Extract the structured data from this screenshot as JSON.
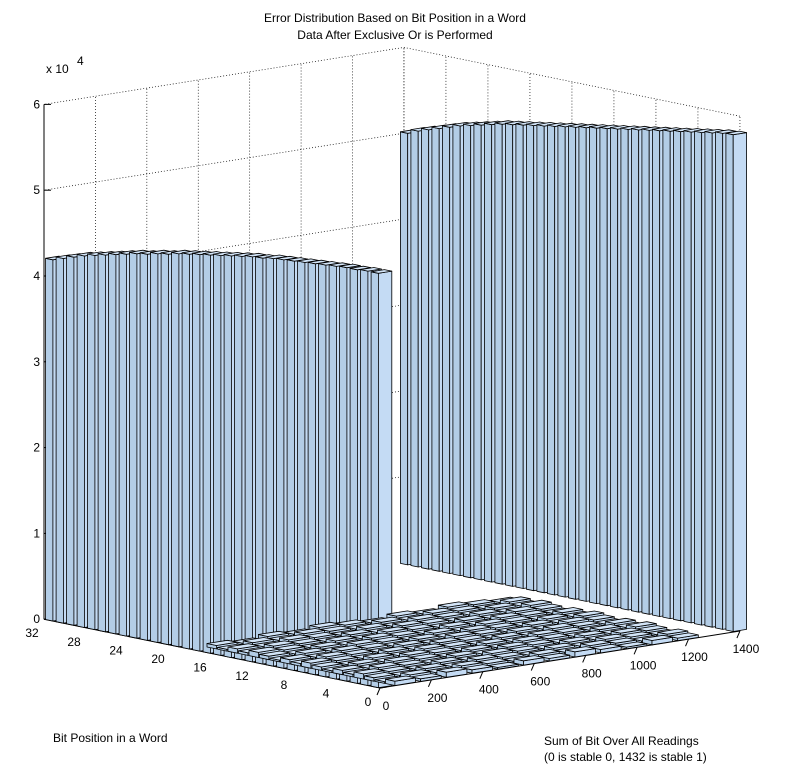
{
  "chart_data": {
    "type": "bar3d",
    "title": "Error Distribution Based on Bit Position in a Word",
    "subtitle": "Data After Exclusive Or is Performed",
    "z_exponent_label": "x 10",
    "z_exponent_power": "4",
    "zlim": [
      0,
      6
    ],
    "z_ticks": [
      "0",
      "1",
      "2",
      "3",
      "4",
      "5",
      "6"
    ],
    "x_ticks": [
      "0",
      "4",
      "8",
      "12",
      "16",
      "20",
      "24",
      "28",
      "32"
    ],
    "y_ticks": [
      "0",
      "200",
      "400",
      "600",
      "800",
      "1000",
      "1200",
      "1400"
    ],
    "xlabel": "Bit Position in a Word",
    "ylabel_line1": "Sum of Bit Over All Readings",
    "ylabel_line2": "(0 is stable 0, 1432 is stable 1)",
    "grid": true,
    "series": [
      {
        "at_sum": 0,
        "values": [
          4.83,
          4.83,
          4.82,
          4.82,
          4.81,
          4.8,
          4.79,
          4.78,
          4.77,
          4.76,
          4.75,
          4.73,
          4.72,
          4.7,
          4.68,
          4.66,
          4.64,
          4.62,
          4.6,
          4.58,
          4.55,
          4.53,
          4.5,
          4.48,
          4.45,
          4.42,
          4.39,
          4.36,
          4.33,
          4.29,
          4.25,
          4.21
        ]
      },
      {
        "at_sum": 1432,
        "values": [
          5.79,
          5.78,
          5.76,
          5.74,
          5.72,
          5.7,
          5.68,
          5.66,
          5.64,
          5.62,
          5.6,
          5.58,
          5.56,
          5.54,
          5.52,
          5.5,
          5.48,
          5.46,
          5.44,
          5.42,
          5.4,
          5.38,
          5.36,
          5.33,
          5.3,
          5.27,
          5.24,
          5.2,
          5.16,
          5.12,
          5.08,
          5.03
        ]
      }
    ]
  }
}
